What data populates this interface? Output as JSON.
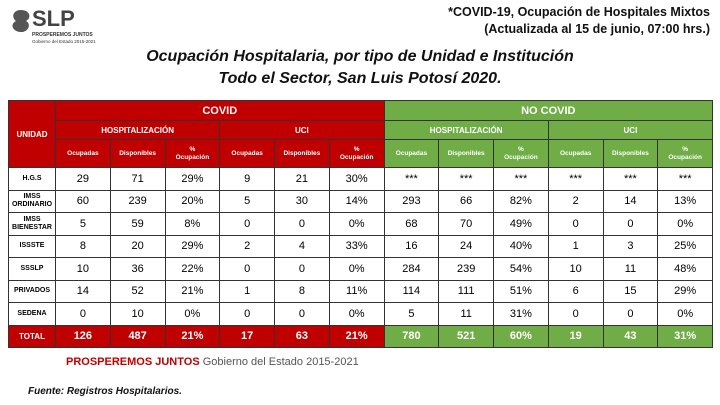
{
  "logo": {
    "name": "SLP",
    "tagline": "PROSPEREMOS JUNTOS",
    "subtitle": "Gobierno del Estado 2015-2021"
  },
  "header": {
    "title": "*COVID-19, Ocupación de Hospitales Mixtos",
    "updated": "(Actualizada al 15 de junio, 07:00 hrs.)"
  },
  "title": {
    "line1": "Ocupación Hospitalaria, por tipo de Unidad e Institución",
    "line2": "Todo el Sector, San Luis Potosí 2020."
  },
  "table": {
    "unit_header": "UNIDAD",
    "groups": [
      "COVID",
      "NO COVID"
    ],
    "subgroups": [
      "HOSPITALIZACIÓN",
      "UCI",
      "HOSPITALIZACIÓN",
      "UCI"
    ],
    "columns": [
      "Ocupadas",
      "Disponibles",
      "%\nOcupación",
      "Ocupadas",
      "Disponibles",
      "%\nOcupación",
      "Ocupadas",
      "Disponibles",
      "%\nOcupación",
      "Ocupadas",
      "Disponibles",
      "%\nOcupación"
    ],
    "rows": [
      {
        "label": "H.G.S",
        "cells": [
          "29",
          "71",
          "29%",
          "9",
          "21",
          "30%",
          "***",
          "***",
          "***",
          "***",
          "***",
          "***"
        ]
      },
      {
        "label": "IMSS\nORDINARIO",
        "cells": [
          "60",
          "239",
          "20%",
          "5",
          "30",
          "14%",
          "293",
          "66",
          "82%",
          "2",
          "14",
          "13%"
        ]
      },
      {
        "label": "IMSS\nBIENESTAR",
        "cells": [
          "5",
          "59",
          "8%",
          "0",
          "0",
          "0%",
          "68",
          "70",
          "49%",
          "0",
          "0",
          "0%"
        ]
      },
      {
        "label": "ISSSTE",
        "cells": [
          "8",
          "20",
          "29%",
          "2",
          "4",
          "33%",
          "16",
          "24",
          "40%",
          "1",
          "3",
          "25%"
        ]
      },
      {
        "label": "SSSLP",
        "cells": [
          "10",
          "36",
          "22%",
          "0",
          "0",
          "0%",
          "284",
          "239",
          "54%",
          "10",
          "11",
          "48%"
        ]
      },
      {
        "label": "PRIVADOS",
        "cells": [
          "14",
          "52",
          "21%",
          "1",
          "8",
          "11%",
          "114",
          "111",
          "51%",
          "6",
          "15",
          "29%"
        ]
      },
      {
        "label": "SEDENA",
        "cells": [
          "0",
          "10",
          "0%",
          "0",
          "0",
          "0%",
          "5",
          "11",
          "31%",
          "0",
          "0",
          "0%"
        ]
      }
    ],
    "total": {
      "label": "TOTAL",
      "cells": [
        "126",
        "487",
        "21%",
        "17",
        "63",
        "21%",
        "780",
        "521",
        "60%",
        "19",
        "43",
        "31%"
      ]
    }
  },
  "footer": {
    "tagline": "PROSPEREMOS JUNTOS",
    "government": "Gobierno del Estado 2015-2021"
  },
  "source": "Fuente: Registros Hospitalarios."
}
